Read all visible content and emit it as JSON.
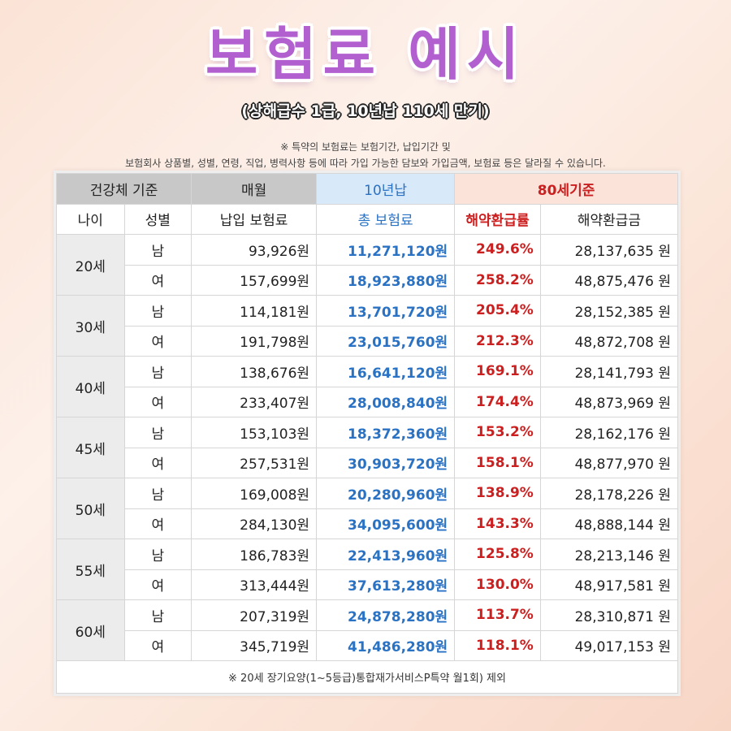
{
  "title": "보험료 예시",
  "subtitle": "(상해급수 1급, 10년납 110세 만기)",
  "note_line1": "※ 특약의 보험료는 보험기간, 납입기간 및",
  "note_line2": "보험회사 상품별, 성별, 연령, 직업, 병력사항 등에 따라 가입 가능한 담보와 가입금액, 보험료 등은 달라질 수 있습니다.",
  "table": {
    "header1": [
      "건강체 기준",
      "매월",
      "10년납",
      "80세기준"
    ],
    "header2": [
      "나이",
      "성별",
      "납입 보험료",
      "총 보험료",
      "해약환급률",
      "해약환급금"
    ],
    "groups": [
      {
        "age": "20세",
        "rows": [
          {
            "gender": "남",
            "monthly": "93,926원",
            "total": "11,271,120원",
            "rate": "249.6%",
            "refund": "28,137,635 원"
          },
          {
            "gender": "여",
            "monthly": "157,699원",
            "total": "18,923,880원",
            "rate": "258.2%",
            "refund": "48,875,476 원"
          }
        ]
      },
      {
        "age": "30세",
        "rows": [
          {
            "gender": "남",
            "monthly": "114,181원",
            "total": "13,701,720원",
            "rate": "205.4%",
            "refund": "28,152,385 원"
          },
          {
            "gender": "여",
            "monthly": "191,798원",
            "total": "23,015,760원",
            "rate": "212.3%",
            "refund": "48,872,708 원"
          }
        ]
      },
      {
        "age": "40세",
        "rows": [
          {
            "gender": "남",
            "monthly": "138,676원",
            "total": "16,641,120원",
            "rate": "169.1%",
            "refund": "28,141,793 원"
          },
          {
            "gender": "여",
            "monthly": "233,407원",
            "total": "28,008,840원",
            "rate": "174.4%",
            "refund": "48,873,969 원"
          }
        ]
      },
      {
        "age": "45세",
        "rows": [
          {
            "gender": "남",
            "monthly": "153,103원",
            "total": "18,372,360원",
            "rate": "153.2%",
            "refund": "28,162,176 원"
          },
          {
            "gender": "여",
            "monthly": "257,531원",
            "total": "30,903,720원",
            "rate": "158.1%",
            "refund": "48,877,970 원"
          }
        ]
      },
      {
        "age": "50세",
        "rows": [
          {
            "gender": "남",
            "monthly": "169,008원",
            "total": "20,280,960원",
            "rate": "138.9%",
            "refund": "28,178,226 원"
          },
          {
            "gender": "여",
            "monthly": "284,130원",
            "total": "34,095,600원",
            "rate": "143.3%",
            "refund": "48,888,144 원"
          }
        ]
      },
      {
        "age": "55세",
        "rows": [
          {
            "gender": "남",
            "monthly": "186,783원",
            "total": "22,413,960원",
            "rate": "125.8%",
            "refund": "28,213,146 원"
          },
          {
            "gender": "여",
            "monthly": "313,444원",
            "total": "37,613,280원",
            "rate": "130.0%",
            "refund": "48,917,581 원"
          }
        ]
      },
      {
        "age": "60세",
        "rows": [
          {
            "gender": "남",
            "monthly": "207,319원",
            "total": "24,878,280원",
            "rate": "113.7%",
            "refund": "28,310,871 원"
          },
          {
            "gender": "여",
            "monthly": "345,719원",
            "total": "41,486,280원",
            "rate": "118.1%",
            "refund": "49,017,153 원"
          }
        ]
      }
    ],
    "footnote": "※ 20세 장기요양(1~5등급)통합재가서비스P특약 월1회) 제외"
  },
  "colors": {
    "title": "#b25fd0",
    "accent_blue": "#2a72c4",
    "accent_red": "#cc2020",
    "header_gray": "#c8c8c8",
    "header_blue": "#d8e9fa",
    "header_pink": "#fbe3da"
  }
}
